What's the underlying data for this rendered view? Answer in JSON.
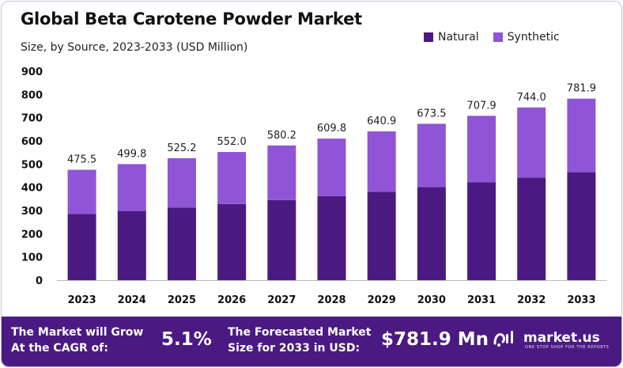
{
  "title": "Global Beta Carotene Powder Market",
  "subtitle": "Size, by Source, 2023-2033 (USD Million)",
  "colors": {
    "natural": "#4a1a82",
    "synthetic": "#9055d6",
    "footer": "#4a1a82",
    "axis": "#333333"
  },
  "chart_data": {
    "type": "bar",
    "stacked": true,
    "title": "Global Beta Carotene Powder Market",
    "subtitle": "Size, by Source, 2023-2033 (USD Million)",
    "xlabel": "",
    "ylabel": "",
    "ylim": [
      0,
      900
    ],
    "yticks": [
      0,
      100,
      200,
      300,
      400,
      500,
      600,
      700,
      800,
      900
    ],
    "categories": [
      "2023",
      "2024",
      "2025",
      "2026",
      "2027",
      "2028",
      "2029",
      "2030",
      "2031",
      "2032",
      "2033"
    ],
    "series": [
      {
        "name": "Natural",
        "values": [
          285,
          298,
          313,
          328,
          345,
          362,
          381,
          401,
          421,
          442,
          465
        ]
      },
      {
        "name": "Synthetic",
        "values": [
          190.5,
          201.8,
          212.2,
          224.0,
          235.2,
          247.8,
          259.9,
          272.5,
          286.9,
          302.0,
          316.9
        ]
      }
    ],
    "totals": [
      "475.5",
      "499.8",
      "525.2",
      "552.0",
      "580.2",
      "609.8",
      "640.9",
      "673.5",
      "707.9",
      "744.0",
      "781.9"
    ],
    "legend": "top-right",
    "grid": false
  },
  "footer": {
    "cagr_label_line1": "The Market will Grow",
    "cagr_label_line2": "At the CAGR of:",
    "cagr_value": "5.1%",
    "forecast_label_line1": "The Forecasted Market",
    "forecast_label_line2": "Size for 2033 in USD:",
    "forecast_value": "$781.9 Mn",
    "brand_name": "market.us",
    "brand_tagline": "ONE STOP SHOP FOR THE REPORTS"
  },
  "icons": {
    "brand_logo": "market-us-logo-icon"
  }
}
